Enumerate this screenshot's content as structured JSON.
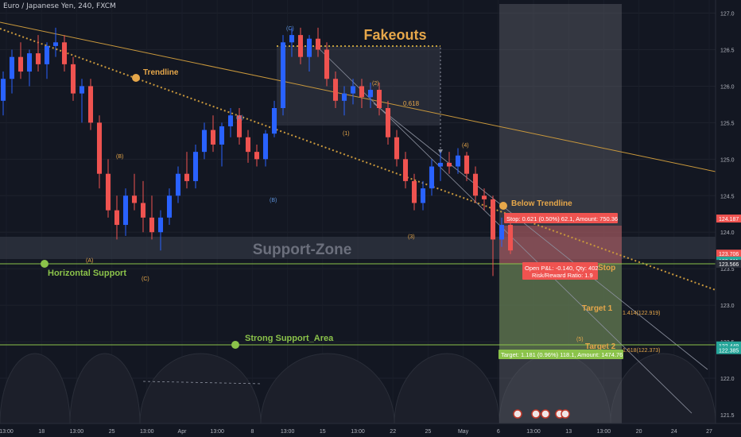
{
  "header": {
    "symbol_title": "Euro / Japanese Yen, 240, FXCM"
  },
  "chart_data": {
    "type": "candlestick",
    "title": "Fakeouts",
    "ylim": [
      121.38,
      127.18
    ],
    "y_ticks": [
      121.5,
      122.0,
      122.5,
      123.0,
      123.5,
      124.0,
      124.5,
      125.0,
      125.5,
      126.0,
      126.5,
      127.0
    ],
    "x_ticks": [
      "13:00",
      "18",
      "13:00",
      "25",
      "13:00",
      "Apr",
      "13:00",
      "8",
      "13:00",
      "15",
      "13:00",
      "22",
      "25",
      "May",
      "6",
      "13:00",
      "13",
      "13:00",
      "20",
      "24",
      "27"
    ],
    "price_labels": [
      {
        "text": "124.187",
        "value": 124.187,
        "color": "#ef5350"
      },
      {
        "text": "123.706",
        "value": 123.706,
        "color": "#ef5350"
      },
      {
        "text": "49:03",
        "value": 123.62,
        "color": "#ef5350"
      },
      {
        "text": "123.611",
        "value": 123.611,
        "color": "#26a69a"
      },
      {
        "text": "123.566",
        "value": 123.566,
        "color": "#2a2e39"
      },
      {
        "text": "122.449",
        "value": 122.449,
        "color": "#26a69a"
      },
      {
        "text": "122.385",
        "value": 122.385,
        "color": "#26a69a"
      }
    ],
    "levels": [
      {
        "name": "Horizontal Support",
        "value": 123.62,
        "color": "#8bc34a"
      },
      {
        "name": "Strong Support_Area",
        "value": 122.45,
        "color": "#8bc34a"
      }
    ],
    "zones": [
      {
        "name": "Support-Zone",
        "from": 123.72,
        "to": 124.02
      }
    ],
    "annotations": {
      "trendline": "Trendline",
      "below_trendline": "Below Trendline",
      "fib": "0.618",
      "target1": "Target 1",
      "target1_level": "1.414(122.919)",
      "target2": "Target 2",
      "target2_level": "1.618(122.373)",
      "stop": "Stop",
      "stop_box": "Stop: 0.621 (0.50%) 62.1, Amount: 750.36",
      "pnl_line1": "Open P&L: -0.140, Qty: 402",
      "pnl_line2": "Risk/Reward Ratio: 1.9",
      "target_box": "Target: 1.181 (0.96%) 118.1, Amount: 1474.76"
    },
    "wave_labels": [
      "(A)",
      "(B)",
      "(C)",
      "(A)",
      "(B)",
      "(C)",
      "(1)",
      "(2)",
      "(3)",
      "(4)",
      "(5)"
    ],
    "candles": [
      [
        125.8,
        126.2,
        125.6,
        126.1
      ],
      [
        126.1,
        126.5,
        125.9,
        126.4
      ],
      [
        126.4,
        126.6,
        126.1,
        126.2
      ],
      [
        126.2,
        126.5,
        126.0,
        126.45
      ],
      [
        126.45,
        126.7,
        126.2,
        126.3
      ],
      [
        126.3,
        126.6,
        126.1,
        126.55
      ],
      [
        126.55,
        126.8,
        126.4,
        126.6
      ],
      [
        126.6,
        126.7,
        126.2,
        126.3
      ],
      [
        126.3,
        126.4,
        125.8,
        125.9
      ],
      [
        125.9,
        126.1,
        125.5,
        126.0
      ],
      [
        126.0,
        126.1,
        125.4,
        125.5
      ],
      [
        125.5,
        125.6,
        124.6,
        124.8
      ],
      [
        124.8,
        125.0,
        124.2,
        124.3
      ],
      [
        124.3,
        124.5,
        123.9,
        124.1
      ],
      [
        124.1,
        124.6,
        123.95,
        124.5
      ],
      [
        124.5,
        124.8,
        124.3,
        124.4
      ],
      [
        124.4,
        124.7,
        124.0,
        124.2
      ],
      [
        124.2,
        124.5,
        123.9,
        124.0
      ],
      [
        124.0,
        124.3,
        123.75,
        124.2
      ],
      [
        124.2,
        124.6,
        124.1,
        124.5
      ],
      [
        124.5,
        124.9,
        124.4,
        124.8
      ],
      [
        124.8,
        125.1,
        124.6,
        124.7
      ],
      [
        124.7,
        125.2,
        124.6,
        125.1
      ],
      [
        125.1,
        125.5,
        125.0,
        125.4
      ],
      [
        125.4,
        125.6,
        125.1,
        125.2
      ],
      [
        125.2,
        125.5,
        124.9,
        125.45
      ],
      [
        125.45,
        125.7,
        125.3,
        125.6
      ],
      [
        125.6,
        125.7,
        125.2,
        125.3
      ],
      [
        125.3,
        125.4,
        124.95,
        125.1
      ],
      [
        125.1,
        125.2,
        124.9,
        125.0
      ],
      [
        125.0,
        125.4,
        124.9,
        125.35
      ],
      [
        125.35,
        125.8,
        125.3,
        125.7
      ],
      [
        125.7,
        126.7,
        125.6,
        126.6
      ],
      [
        126.6,
        126.8,
        126.4,
        126.7
      ],
      [
        126.7,
        126.8,
        126.3,
        126.4
      ],
      [
        126.4,
        126.7,
        126.2,
        126.65
      ],
      [
        126.65,
        126.8,
        126.4,
        126.5
      ],
      [
        126.5,
        126.6,
        126.0,
        126.1
      ],
      [
        126.1,
        126.2,
        125.7,
        125.8
      ],
      [
        125.8,
        126.0,
        125.6,
        125.9
      ],
      [
        125.9,
        126.1,
        125.75,
        126.0
      ],
      [
        126.0,
        126.1,
        125.7,
        125.85
      ],
      [
        125.85,
        126.05,
        125.7,
        125.95
      ],
      [
        125.95,
        126.05,
        125.6,
        125.7
      ],
      [
        125.7,
        125.8,
        125.2,
        125.3
      ],
      [
        125.3,
        125.4,
        124.9,
        125.0
      ],
      [
        125.0,
        125.1,
        124.6,
        124.7
      ],
      [
        124.7,
        124.8,
        124.3,
        124.4
      ],
      [
        124.4,
        124.7,
        124.3,
        124.6
      ],
      [
        124.6,
        125.0,
        124.5,
        124.9
      ],
      [
        124.9,
        125.1,
        124.7,
        124.95
      ],
      [
        124.95,
        125.1,
        124.8,
        124.9
      ],
      [
        124.9,
        125.15,
        124.8,
        125.05
      ],
      [
        125.05,
        125.1,
        124.7,
        124.8
      ],
      [
        124.8,
        124.9,
        124.4,
        124.5
      ],
      [
        124.5,
        124.6,
        124.3,
        124.45
      ],
      [
        124.45,
        124.5,
        123.4,
        123.9
      ],
      [
        123.9,
        124.2,
        123.8,
        124.1
      ],
      [
        124.1,
        124.2,
        123.7,
        123.75
      ]
    ]
  }
}
